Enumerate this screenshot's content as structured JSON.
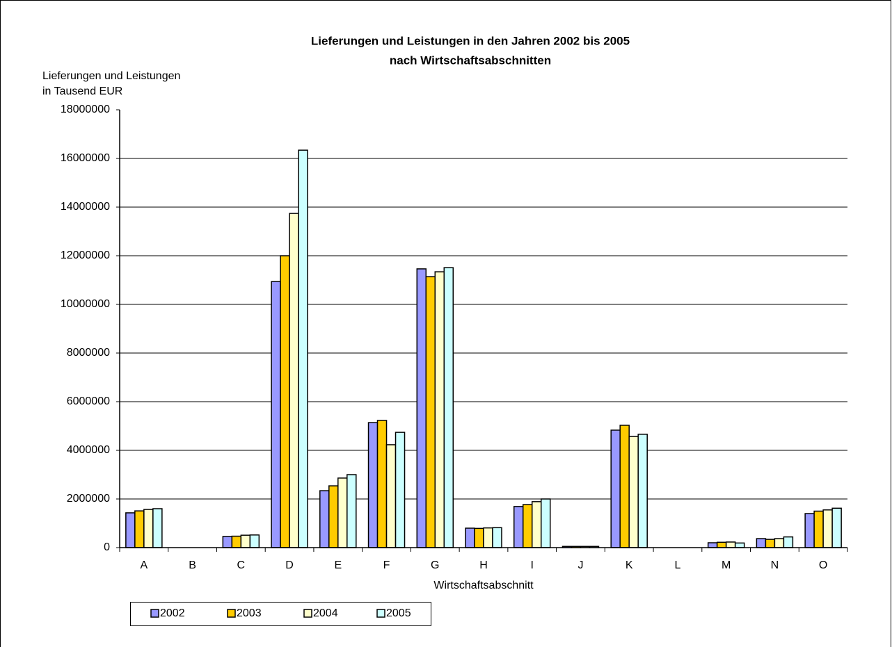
{
  "chart_data": {
    "type": "bar",
    "title": [
      "Lieferungen und Leistungen in den Jahren 2002 bis 2005",
      "nach Wirtschaftsabschnitten"
    ],
    "ylabel": [
      "Lieferungen und Leistungen",
      "in Tausend EUR"
    ],
    "xlabel": "Wirtschaftsabschnitt",
    "categories": [
      "A",
      "B",
      "C",
      "D",
      "E",
      "F",
      "G",
      "H",
      "I",
      "J",
      "K",
      "L",
      "M",
      "N",
      "O"
    ],
    "series": [
      {
        "name": "2002",
        "color": "#9999ff",
        "values": [
          1430000,
          0,
          460000,
          10940000,
          2340000,
          5140000,
          11460000,
          800000,
          1690000,
          50000,
          4830000,
          0,
          200000,
          370000,
          1400000
        ]
      },
      {
        "name": "2003",
        "color": "#ffcc00",
        "values": [
          1510000,
          0,
          470000,
          12000000,
          2540000,
          5230000,
          11140000,
          790000,
          1770000,
          50000,
          5030000,
          0,
          220000,
          340000,
          1500000
        ]
      },
      {
        "name": "2004",
        "color": "#ffffcc",
        "values": [
          1570000,
          0,
          510000,
          13740000,
          2860000,
          4230000,
          11340000,
          810000,
          1890000,
          50000,
          4570000,
          0,
          230000,
          370000,
          1550000
        ]
      },
      {
        "name": "2005",
        "color": "#ccffff",
        "values": [
          1600000,
          0,
          520000,
          16340000,
          3000000,
          4740000,
          11510000,
          820000,
          2000000,
          50000,
          4660000,
          0,
          190000,
          440000,
          1620000
        ]
      }
    ],
    "ylim": [
      0,
      18000000
    ],
    "yticks": [
      0,
      2000000,
      4000000,
      6000000,
      8000000,
      10000000,
      12000000,
      14000000,
      16000000,
      18000000
    ],
    "grid": true
  }
}
